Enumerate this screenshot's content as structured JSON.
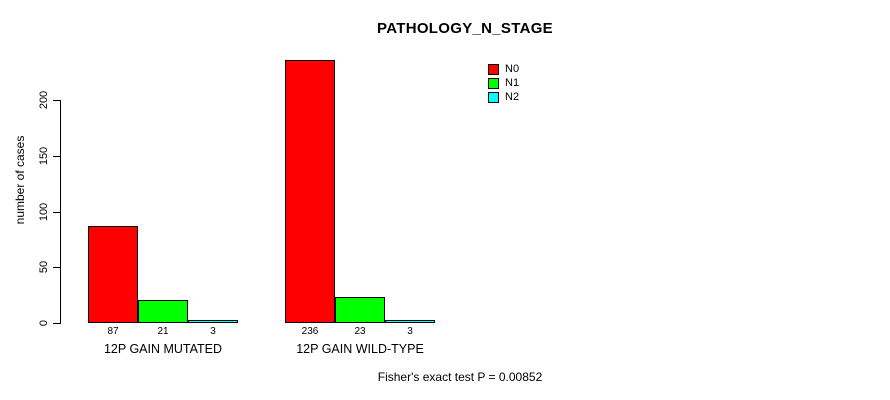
{
  "chart_data": {
    "type": "bar",
    "title": "PATHOLOGY_N_STAGE",
    "ylabel": "number of cases",
    "xlabel": "",
    "categories": [
      "12P GAIN MUTATED",
      "12P GAIN WILD-TYPE"
    ],
    "series": [
      {
        "name": "N0",
        "color": "#ff0000",
        "values": [
          87,
          236
        ]
      },
      {
        "name": "N1",
        "color": "#00ff00",
        "values": [
          21,
          23
        ]
      },
      {
        "name": "N2",
        "color": "#00ffff",
        "values": [
          3,
          3
        ]
      }
    ],
    "yticks": [
      0,
      50,
      100,
      150,
      200
    ],
    "ylim": [
      0,
      240
    ],
    "grid": false,
    "bar_values_shown": true,
    "legend_position": "top-right",
    "annotation": "Fisher's exact test P = 0.00852"
  },
  "colors": {
    "background": "#ffffff",
    "axis": "#000000",
    "text": "#000000",
    "n0": "#ff0000",
    "n1": "#00ff00",
    "n2": "#00ffff"
  }
}
